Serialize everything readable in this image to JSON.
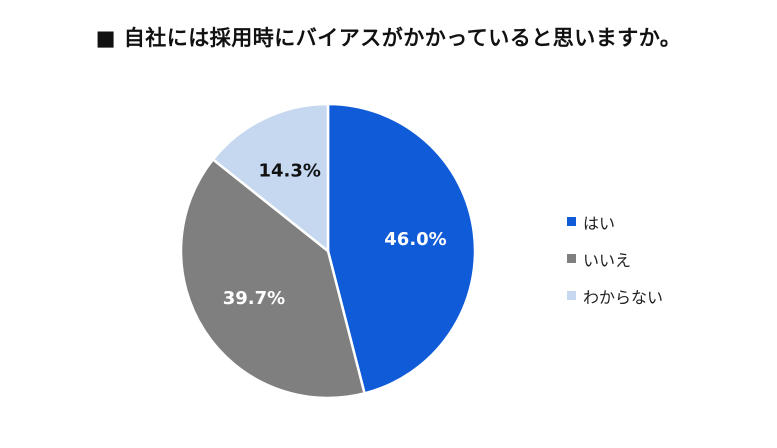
{
  "title": "■ 自社には採用時にバイアスがかかっていると思いますか。",
  "chart_data": {
    "type": "pie",
    "title": "■ 自社には採用時にバイアスがかかっていると思いますか。",
    "categories": [
      "はい",
      "いいえ",
      "わからない"
    ],
    "values": [
      46.0,
      39.7,
      14.3
    ],
    "data_labels": [
      "46.0%",
      "39.7%",
      "14.3%"
    ],
    "colors": [
      "#0F5BD8",
      "#7F7F7F",
      "#C5D8EF"
    ],
    "label_colors": [
      "#ffffff",
      "#ffffff",
      "#111111"
    ],
    "start_angle": "12 o'clock",
    "direction": "clockwise",
    "legend_position": "right"
  }
}
